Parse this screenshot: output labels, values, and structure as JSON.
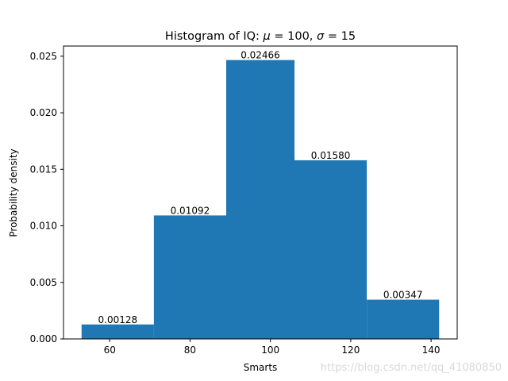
{
  "chart_data": {
    "type": "bar",
    "title": "Histogram of IQ: μ = 100, σ = 15",
    "title_parts": {
      "prefix": "Histogram of IQ: ",
      "mu_symbol": "μ",
      "mu_eq": " = 100, ",
      "sigma_symbol": "σ",
      "sigma_eq": " = 15"
    },
    "xlabel": "Smarts",
    "ylabel": "Probability density",
    "xlim": [
      48.5,
      146.5
    ],
    "ylim": [
      0,
      0.0259
    ],
    "xticks": [
      60,
      80,
      100,
      120,
      140
    ],
    "yticks": [
      0.0,
      0.005,
      0.01,
      0.015,
      0.02,
      0.025
    ],
    "ytick_labels": [
      "0.000",
      "0.005",
      "0.010",
      "0.015",
      "0.020",
      "0.025"
    ],
    "grid": false,
    "bin_edges": [
      53,
      71,
      89,
      106,
      124,
      142
    ],
    "values": [
      0.00128,
      0.01092,
      0.02466,
      0.0158,
      0.00347
    ],
    "value_labels": [
      "0.00128",
      "0.01092",
      "0.02466",
      "0.01580",
      "0.00347"
    ],
    "bar_color": "#1f77b4"
  },
  "watermark": "https://blog.csdn.net/qq_41080850"
}
